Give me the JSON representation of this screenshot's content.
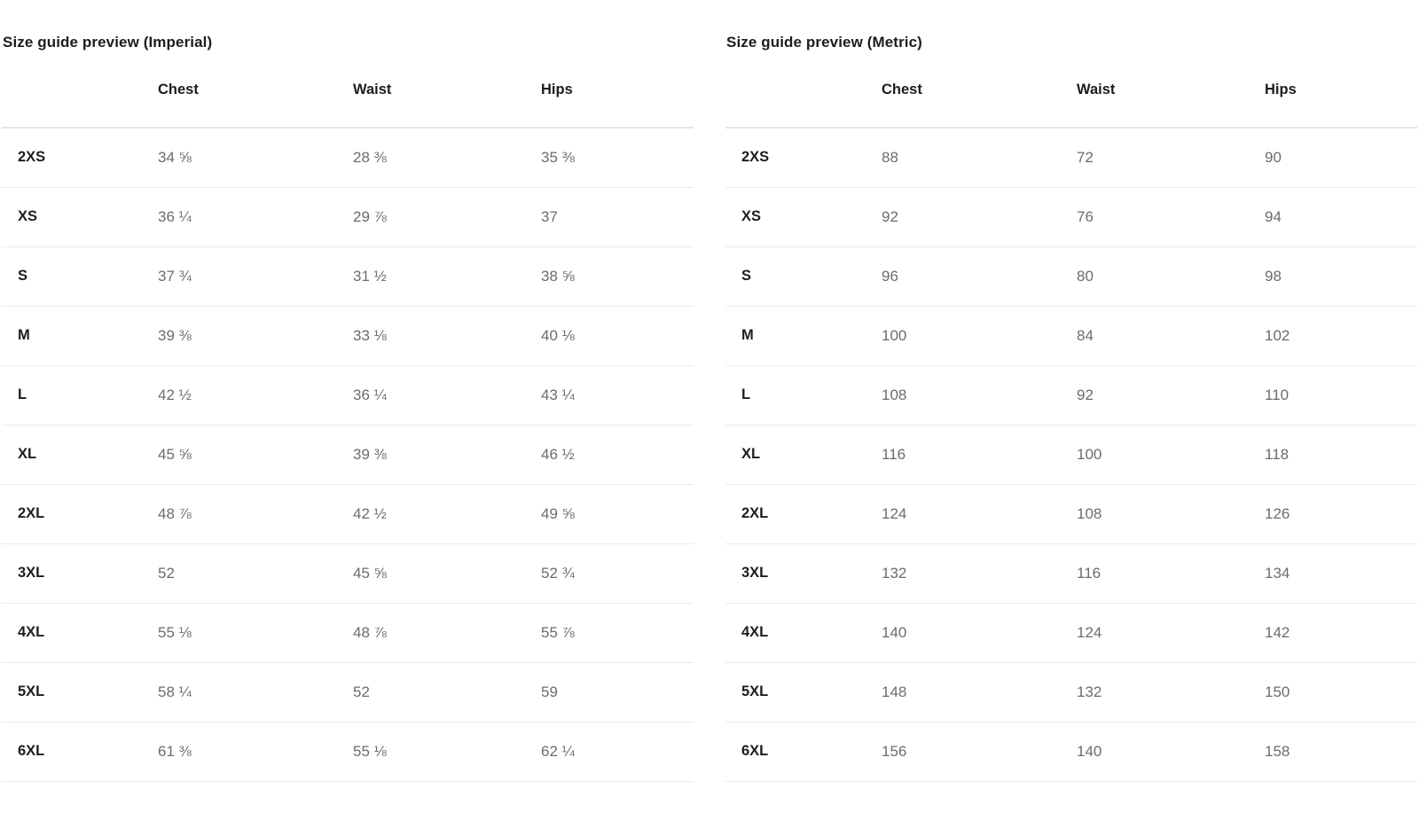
{
  "tables": [
    {
      "title": "Size guide preview (Imperial)",
      "columns": [
        "Chest",
        "Waist",
        "Hips"
      ],
      "rows": [
        {
          "size": "2XS",
          "chest": "34 ⅝",
          "waist": "28 ⅜",
          "hips": "35 ⅜"
        },
        {
          "size": "XS",
          "chest": "36 ¼",
          "waist": "29 ⅞",
          "hips": "37"
        },
        {
          "size": "S",
          "chest": "37 ¾",
          "waist": "31 ½",
          "hips": "38 ⅝"
        },
        {
          "size": "M",
          "chest": "39 ⅜",
          "waist": "33 ⅛",
          "hips": "40 ⅛"
        },
        {
          "size": "L",
          "chest": "42 ½",
          "waist": "36 ¼",
          "hips": "43 ¼"
        },
        {
          "size": "XL",
          "chest": "45 ⅝",
          "waist": "39 ⅜",
          "hips": "46 ½"
        },
        {
          "size": "2XL",
          "chest": "48 ⅞",
          "waist": "42 ½",
          "hips": "49 ⅝"
        },
        {
          "size": "3XL",
          "chest": "52",
          "waist": "45 ⅝",
          "hips": "52 ¾"
        },
        {
          "size": "4XL",
          "chest": "55 ⅛",
          "waist": "48 ⅞",
          "hips": "55 ⅞"
        },
        {
          "size": "5XL",
          "chest": "58 ¼",
          "waist": "52",
          "hips": "59"
        },
        {
          "size": "6XL",
          "chest": "61 ⅜",
          "waist": "55 ⅛",
          "hips": "62 ¼"
        }
      ]
    },
    {
      "title": "Size guide preview (Metric)",
      "columns": [
        "Chest",
        "Waist",
        "Hips"
      ],
      "rows": [
        {
          "size": "2XS",
          "chest": "88",
          "waist": "72",
          "hips": "90"
        },
        {
          "size": "XS",
          "chest": "92",
          "waist": "76",
          "hips": "94"
        },
        {
          "size": "S",
          "chest": "96",
          "waist": "80",
          "hips": "98"
        },
        {
          "size": "M",
          "chest": "100",
          "waist": "84",
          "hips": "102"
        },
        {
          "size": "L",
          "chest": "108",
          "waist": "92",
          "hips": "110"
        },
        {
          "size": "XL",
          "chest": "116",
          "waist": "100",
          "hips": "118"
        },
        {
          "size": "2XL",
          "chest": "124",
          "waist": "108",
          "hips": "126"
        },
        {
          "size": "3XL",
          "chest": "132",
          "waist": "116",
          "hips": "134"
        },
        {
          "size": "4XL",
          "chest": "140",
          "waist": "124",
          "hips": "142"
        },
        {
          "size": "5XL",
          "chest": "148",
          "waist": "132",
          "hips": "150"
        },
        {
          "size": "6XL",
          "chest": "156",
          "waist": "140",
          "hips": "158"
        }
      ]
    }
  ]
}
